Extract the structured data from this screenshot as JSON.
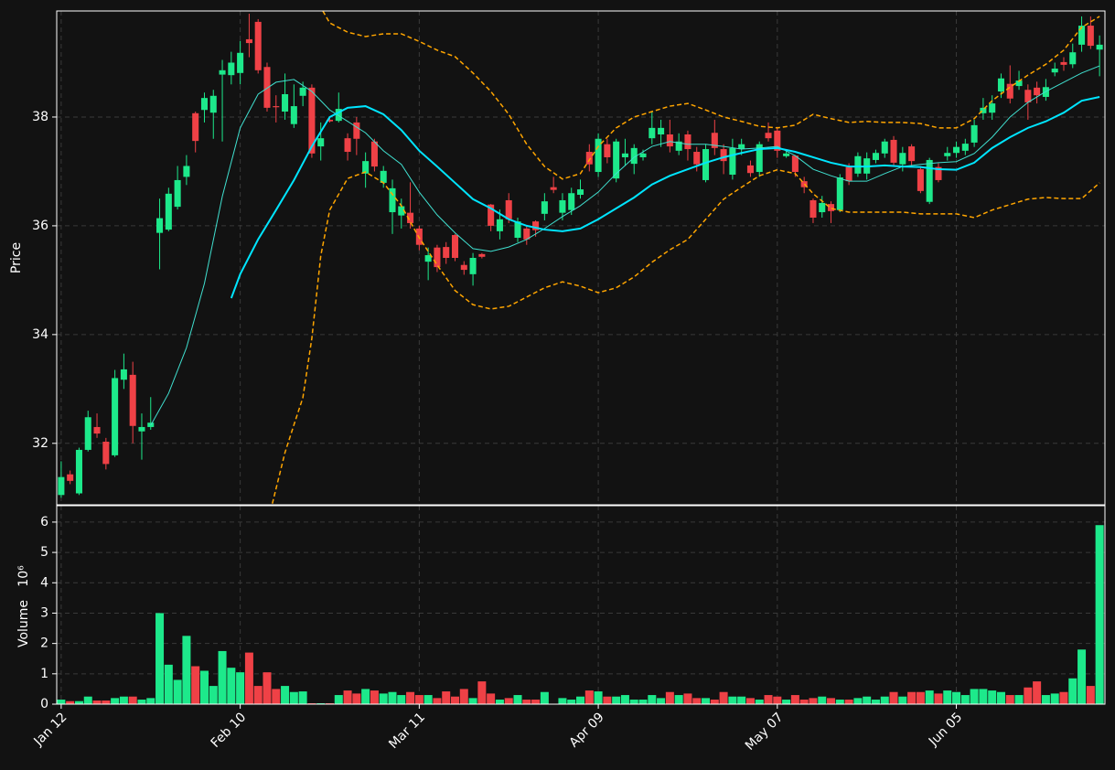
{
  "chart_data": [
    {
      "type": "candlestick",
      "ylabel": "Price",
      "open": [
        31.05,
        31.43,
        31.08,
        31.88,
        32.3,
        32.03,
        31.78,
        33.17,
        33.26,
        32.22,
        32.3,
        35.87,
        35.93,
        36.35,
        36.9,
        38.07,
        38.13,
        38.08,
        38.78,
        38.77,
        38.81,
        39.43,
        39.75,
        38.92,
        38.2,
        38.1,
        37.87,
        38.39,
        38.54,
        37.46,
        37.95,
        37.93,
        37.61,
        37.9,
        36.96,
        37.55,
        36.79,
        36.25,
        36.19,
        36.24,
        35.95,
        35.34,
        35.6,
        35.61,
        35.83,
        35.28,
        35.11,
        35.48,
        36.39,
        35.9,
        36.47,
        35.78,
        35.95,
        36.08,
        36.22,
        36.71,
        36.24,
        36.29,
        36.57,
        37.36,
        36.99,
        37.5,
        36.87,
        37.26,
        37.14,
        37.26,
        37.61,
        37.68,
        37.68,
        37.38,
        37.68,
        37.36,
        36.84,
        37.71,
        37.41,
        36.94,
        37.41,
        37.11,
        36.99,
        37.71,
        37.75,
        37.28,
        37.29,
        36.82,
        36.47,
        36.25,
        36.4,
        36.29,
        37.08,
        36.96,
        36.96,
        37.21,
        37.33,
        37.58,
        37.13,
        37.46,
        37.04,
        36.44,
        37.08,
        37.28,
        37.34,
        37.38,
        37.53,
        38.07,
        38.08,
        38.47,
        38.61,
        38.57,
        38.5,
        38.54,
        38.37,
        38.82,
        39.01,
        38.97,
        39.33,
        39.68,
        39.24
      ],
      "high": [
        31.67,
        31.5,
        31.92,
        32.6,
        32.55,
        32.1,
        33.35,
        33.65,
        33.5,
        32.55,
        32.85,
        36.5,
        36.7,
        37.1,
        37.3,
        38.1,
        38.45,
        38.5,
        39.05,
        39.2,
        39.4,
        39.9,
        39.8,
        39.0,
        38.4,
        38.8,
        38.6,
        38.65,
        38.6,
        37.9,
        38.0,
        38.45,
        37.7,
        38.0,
        37.35,
        37.6,
        37.1,
        36.85,
        36.5,
        36.8,
        36.0,
        35.6,
        35.65,
        35.7,
        35.85,
        35.35,
        35.5,
        35.5,
        36.4,
        36.3,
        36.6,
        36.15,
        36.0,
        36.1,
        36.6,
        36.9,
        36.6,
        36.7,
        36.85,
        37.5,
        37.7,
        37.6,
        37.6,
        37.6,
        37.5,
        37.4,
        38.1,
        37.95,
        37.95,
        37.7,
        37.75,
        37.45,
        37.5,
        37.95,
        37.5,
        37.6,
        37.6,
        37.2,
        37.55,
        37.9,
        37.8,
        37.4,
        37.3,
        36.9,
        36.5,
        36.55,
        36.45,
        36.95,
        37.15,
        37.35,
        37.35,
        37.4,
        37.6,
        37.65,
        37.45,
        37.5,
        37.1,
        37.25,
        37.15,
        37.45,
        37.55,
        37.6,
        37.95,
        38.35,
        38.4,
        38.8,
        38.95,
        38.85,
        38.6,
        38.65,
        38.7,
        39.0,
        39.1,
        39.35,
        39.85,
        39.85,
        39.5
      ],
      "low": [
        31.0,
        31.25,
        31.05,
        31.85,
        32.1,
        31.52,
        31.75,
        33.0,
        32.0,
        31.7,
        32.25,
        35.2,
        35.9,
        36.3,
        36.75,
        37.35,
        37.9,
        37.6,
        37.55,
        38.6,
        38.6,
        39.1,
        38.8,
        38.1,
        37.9,
        37.95,
        37.8,
        38.2,
        37.25,
        37.2,
        37.9,
        37.9,
        37.2,
        37.3,
        36.7,
        37.0,
        36.7,
        35.85,
        35.95,
        35.95,
        35.55,
        35.0,
        35.15,
        35.3,
        35.35,
        35.1,
        34.9,
        35.4,
        35.9,
        35.75,
        36.05,
        35.7,
        35.65,
        35.8,
        36.1,
        36.6,
        36.1,
        36.2,
        36.5,
        37.0,
        36.9,
        37.15,
        36.8,
        37.1,
        36.95,
        37.2,
        37.5,
        37.45,
        37.35,
        37.3,
        37.2,
        37.0,
        36.8,
        37.3,
        36.95,
        36.85,
        37.3,
        36.9,
        36.9,
        37.55,
        37.25,
        37.25,
        36.9,
        36.6,
        36.05,
        36.15,
        36.05,
        36.25,
        36.75,
        36.9,
        36.85,
        37.15,
        37.25,
        37.1,
        37.0,
        37.1,
        36.6,
        36.4,
        36.8,
        37.2,
        37.25,
        37.3,
        37.45,
        37.95,
        37.95,
        38.35,
        38.25,
        38.5,
        37.95,
        38.25,
        38.3,
        38.75,
        38.85,
        38.9,
        39.2,
        39.25,
        38.75
      ],
      "close": [
        31.38,
        31.31,
        31.88,
        32.48,
        32.18,
        31.62,
        33.2,
        33.36,
        32.32,
        32.3,
        32.38,
        36.14,
        36.59,
        36.84,
        37.1,
        37.56,
        38.35,
        38.39,
        38.86,
        39.0,
        39.18,
        39.36,
        38.86,
        38.17,
        38.18,
        38.42,
        38.2,
        38.54,
        37.33,
        37.61,
        37.92,
        38.15,
        37.36,
        37.6,
        37.19,
        37.09,
        37.01,
        36.69,
        36.36,
        36.05,
        35.65,
        35.46,
        35.24,
        35.41,
        35.41,
        35.19,
        35.41,
        35.43,
        36.0,
        36.12,
        36.12,
        36.08,
        35.75,
        35.92,
        36.45,
        36.66,
        36.47,
        36.6,
        36.67,
        37.13,
        37.6,
        37.26,
        37.55,
        37.33,
        37.43,
        37.33,
        37.8,
        37.8,
        37.46,
        37.55,
        37.41,
        37.13,
        37.41,
        37.43,
        37.19,
        37.43,
        37.5,
        36.97,
        37.5,
        37.61,
        37.38,
        37.33,
        36.99,
        36.71,
        36.15,
        36.42,
        36.27,
        36.89,
        36.82,
        37.28,
        37.24,
        37.34,
        37.55,
        37.16,
        37.34,
        37.19,
        36.64,
        37.21,
        36.84,
        37.34,
        37.45,
        37.51,
        37.85,
        38.17,
        38.25,
        38.71,
        38.34,
        38.67,
        38.27,
        38.4,
        38.55,
        38.89,
        38.96,
        39.19,
        39.68,
        39.31,
        39.33
      ],
      "up_color": "#1de98b",
      "down_color": "#ef4146",
      "lines": [
        {
          "color": "#40e0d0",
          "width": 1,
          "dash": false,
          "x": [
            10,
            12,
            14,
            16,
            18,
            20,
            22,
            24,
            26,
            28,
            30,
            32,
            34,
            36,
            38,
            40,
            42,
            44,
            46,
            48,
            50,
            52,
            54,
            56,
            58,
            60,
            62,
            64,
            66,
            68,
            70,
            72,
            74,
            76,
            78,
            80,
            82,
            84,
            86,
            88,
            90,
            92,
            94,
            96,
            98,
            100,
            102,
            104,
            106,
            108,
            110,
            112,
            114,
            116
          ],
          "values": [
            32.33,
            32.92,
            33.76,
            34.94,
            36.54,
            37.8,
            38.42,
            38.64,
            38.69,
            38.47,
            38.13,
            37.92,
            37.71,
            37.38,
            37.13,
            36.62,
            36.2,
            35.87,
            35.58,
            35.53,
            35.61,
            35.75,
            35.95,
            36.17,
            36.37,
            36.62,
            36.96,
            37.26,
            37.46,
            37.55,
            37.5,
            37.5,
            37.46,
            37.41,
            37.43,
            37.46,
            37.29,
            37.04,
            36.92,
            36.82,
            36.82,
            36.96,
            37.09,
            37.13,
            37.16,
            37.18,
            37.33,
            37.63,
            38.0,
            38.27,
            38.47,
            38.64,
            38.81,
            38.94
          ]
        },
        {
          "color": "#00e5ff",
          "width": 2,
          "dash": false,
          "x": [
            19,
            20,
            22,
            24,
            26,
            28,
            30,
            32,
            34,
            36,
            38,
            40,
            42,
            44,
            46,
            48,
            50,
            52,
            54,
            56,
            58,
            60,
            62,
            64,
            66,
            68,
            70,
            72,
            74,
            76,
            78,
            80,
            82,
            84,
            86,
            88,
            90,
            92,
            94,
            96,
            98,
            100,
            102,
            104,
            106,
            108,
            110,
            112,
            114,
            116
          ],
          "values": [
            34.67,
            35.11,
            35.75,
            36.29,
            36.84,
            37.46,
            38.0,
            38.17,
            38.2,
            38.05,
            37.76,
            37.38,
            37.09,
            36.79,
            36.49,
            36.32,
            36.12,
            36.0,
            35.93,
            35.9,
            35.95,
            36.12,
            36.32,
            36.52,
            36.76,
            36.92,
            37.04,
            37.16,
            37.26,
            37.34,
            37.41,
            37.43,
            37.36,
            37.26,
            37.16,
            37.09,
            37.09,
            37.11,
            37.09,
            37.08,
            37.04,
            37.03,
            37.16,
            37.43,
            37.63,
            37.8,
            37.92,
            38.08,
            38.3,
            38.37
          ]
        },
        {
          "color": "#ffa500",
          "width": 1.5,
          "dash": true,
          "x": [
            28,
            30,
            32,
            34,
            36,
            38,
            40,
            42,
            44,
            46,
            48,
            50,
            52,
            54,
            56,
            58,
            60,
            62,
            64,
            66,
            68,
            70,
            72,
            74,
            76,
            78,
            80,
            82,
            84,
            86,
            88,
            90,
            92,
            94,
            96,
            98,
            100,
            102,
            104,
            106,
            108,
            110,
            112,
            114,
            116
          ],
          "values": [
            40.3,
            39.73,
            39.56,
            39.48,
            39.53,
            39.53,
            39.39,
            39.23,
            39.11,
            38.81,
            38.47,
            38.05,
            37.5,
            37.09,
            36.86,
            36.96,
            37.46,
            37.8,
            38.0,
            38.1,
            38.2,
            38.25,
            38.13,
            38.0,
            37.92,
            37.83,
            37.8,
            37.85,
            38.05,
            37.97,
            37.9,
            37.92,
            37.9,
            37.9,
            37.88,
            37.8,
            37.8,
            37.97,
            38.3,
            38.55,
            38.77,
            38.97,
            39.23,
            39.65,
            39.85
          ]
        },
        {
          "color": "#ffa500",
          "width": 1.5,
          "dash": true,
          "x": [
            23,
            25,
            26,
            27,
            28,
            29,
            30,
            32,
            34,
            36,
            38,
            40,
            42,
            44,
            46,
            48,
            50,
            52,
            54,
            56,
            58,
            60,
            62,
            64,
            66,
            68,
            70,
            72,
            74,
            76,
            78,
            80,
            82,
            84,
            86,
            88,
            90,
            92,
            94,
            96,
            98,
            100,
            102,
            104,
            106,
            108,
            110,
            112,
            114,
            116
          ],
          "values": [
            30.5,
            31.83,
            32.34,
            32.84,
            33.93,
            35.45,
            36.29,
            36.87,
            36.99,
            36.79,
            36.37,
            35.78,
            35.28,
            34.81,
            34.55,
            34.47,
            34.52,
            34.69,
            34.86,
            34.97,
            34.89,
            34.77,
            34.86,
            35.06,
            35.33,
            35.56,
            35.75,
            36.12,
            36.49,
            36.71,
            36.92,
            37.03,
            36.96,
            36.59,
            36.32,
            36.25,
            36.25,
            36.25,
            36.25,
            36.22,
            36.22,
            36.22,
            36.15,
            36.29,
            36.39,
            36.49,
            36.52,
            36.5,
            36.5,
            36.79
          ]
        }
      ],
      "xlim": [
        -0.5,
        116.6
      ],
      "ylim": [
        30.87,
        39.95
      ],
      "yticks": [
        32,
        34,
        36,
        38
      ],
      "grid": true
    },
    {
      "type": "bar",
      "ylabel": "Volume",
      "scale_label": "10⁶",
      "values": [
        0.15,
        0.1,
        0.1,
        0.25,
        0.12,
        0.12,
        0.2,
        0.25,
        0.25,
        0.15,
        0.2,
        3.0,
        1.3,
        0.8,
        2.25,
        1.25,
        1.1,
        0.6,
        1.75,
        1.2,
        1.05,
        1.7,
        0.6,
        1.05,
        0.5,
        0.6,
        0.4,
        0.42,
        0.03,
        0.03,
        0.03,
        0.3,
        0.45,
        0.35,
        0.5,
        0.45,
        0.35,
        0.4,
        0.3,
        0.4,
        0.3,
        0.3,
        0.2,
        0.42,
        0.25,
        0.5,
        0.2,
        0.75,
        0.35,
        0.15,
        0.2,
        0.3,
        0.15,
        0.15,
        0.4,
        0.0,
        0.2,
        0.15,
        0.25,
        0.45,
        0.42,
        0.25,
        0.25,
        0.3,
        0.15,
        0.15,
        0.3,
        0.2,
        0.4,
        0.3,
        0.35,
        0.2,
        0.2,
        0.15,
        0.4,
        0.25,
        0.25,
        0.2,
        0.15,
        0.3,
        0.25,
        0.15,
        0.3,
        0.15,
        0.2,
        0.25,
        0.2,
        0.15,
        0.15,
        0.2,
        0.25,
        0.15,
        0.25,
        0.4,
        0.25,
        0.4,
        0.4,
        0.45,
        0.35,
        0.45,
        0.4,
        0.3,
        0.5,
        0.5,
        0.45,
        0.4,
        0.3,
        0.3,
        0.55,
        0.75,
        0.3,
        0.35,
        0.4,
        0.85,
        1.8,
        0.6,
        5.9
      ],
      "ylim": [
        0,
        6.54
      ],
      "yticks": [
        0,
        1,
        2,
        3,
        4,
        5,
        6
      ],
      "xticks": [
        {
          "value": 0,
          "label": "Jan 12"
        },
        {
          "value": 20,
          "label": "Feb 10"
        },
        {
          "value": 40,
          "label": "Mar 11"
        },
        {
          "value": 60,
          "label": "Apr 09"
        },
        {
          "value": 80,
          "label": "May 07"
        },
        {
          "value": 100,
          "label": "Jun 05"
        }
      ],
      "grid": true
    }
  ]
}
